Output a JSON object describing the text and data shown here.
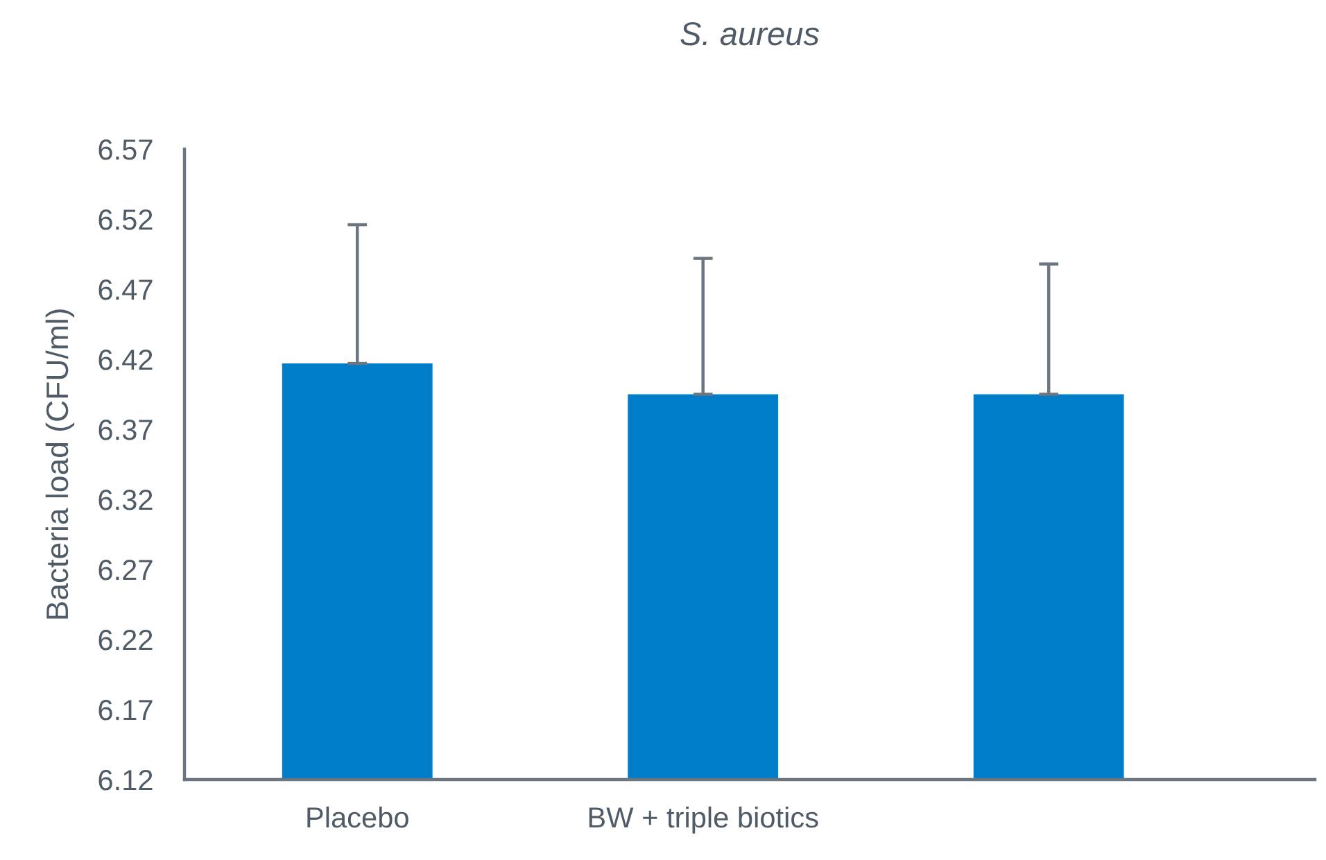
{
  "chart_data": {
    "type": "bar",
    "title": "S. aureus",
    "ylabel": "Bacteria load (CFU/ml)",
    "categories": [
      "Placebo",
      "BW + triple biotics",
      null
    ],
    "values": [
      6.417,
      6.395,
      6.395
    ],
    "errors": [
      [
        6.417,
        6.516
      ],
      [
        6.395,
        6.492
      ],
      [
        6.395,
        6.488
      ]
    ],
    "color": "#007dc8",
    "ylim": [
      6.12,
      6.57
    ],
    "yticks": [
      6.12,
      6.17,
      6.22,
      6.27,
      6.32,
      6.37,
      6.42,
      6.47,
      6.52,
      6.57
    ],
    "grid": false,
    "legend": false
  }
}
